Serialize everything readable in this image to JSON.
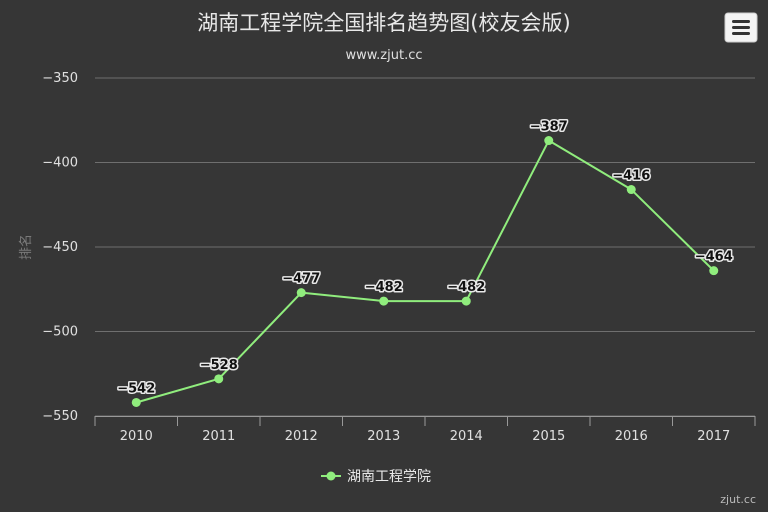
{
  "chart_data": {
    "type": "line",
    "title": "湖南工程学院全国排名趋势图(校友会版)",
    "subtitle": "www.zjut.cc",
    "ylabel": "排名",
    "xlabel": "",
    "ylim": [
      -550,
      -350
    ],
    "yticks": [
      -350,
      -400,
      -450,
      -500,
      -550
    ],
    "categories": [
      "2010",
      "2011",
      "2012",
      "2013",
      "2014",
      "2015",
      "2016",
      "2017"
    ],
    "series": [
      {
        "name": "湖南工程学院",
        "values": [
          -542,
          -528,
          -477,
          -482,
          -482,
          -387,
          -416,
          -464
        ],
        "color": "#90ed7d"
      }
    ],
    "grid": true,
    "legend": "bottom-center"
  },
  "credits": "zjut.cc",
  "menu_icon": "hamburger-menu-icon"
}
